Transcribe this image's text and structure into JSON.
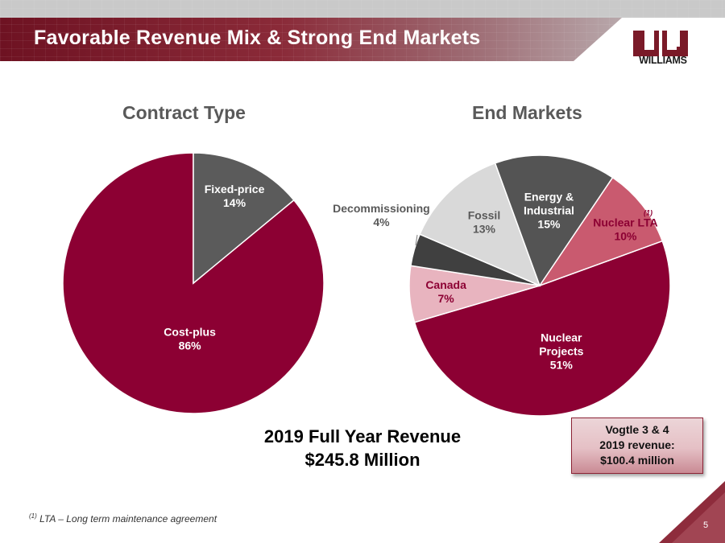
{
  "header": {
    "title": "Favorable Revenue Mix & Strong End Markets",
    "logo_text": "WILLIAMS"
  },
  "colors": {
    "brand_dark_red": "#8c0033",
    "header_red": "#7a1a28",
    "dark_gray": "#5b5b5b",
    "charcoal": "#404040",
    "light_gray": "#d9d9d9",
    "rose": "#c95a6f",
    "pink": "#e8b4bf"
  },
  "chart_data": [
    {
      "type": "pie",
      "title": "Contract Type",
      "slices": [
        {
          "label": "Cost-plus",
          "value": 86,
          "display": "86%",
          "color": "#8c0033",
          "text_color": "#ffffff"
        },
        {
          "label": "Fixed-price",
          "value": 14,
          "display": "14%",
          "color": "#5b5b5b",
          "text_color": "#ffffff"
        }
      ]
    },
    {
      "type": "pie",
      "title": "End Markets",
      "slices": [
        {
          "label": "Nuclear Projects",
          "lines": [
            "Nuclear",
            "Projects"
          ],
          "value": 51,
          "display": "51%",
          "color": "#8c0033",
          "text_color": "#ffffff"
        },
        {
          "label": "Canada",
          "lines": [
            "Canada"
          ],
          "value": 7,
          "display": "7%",
          "color": "#e8b4bf",
          "text_color": "#8c0033"
        },
        {
          "label": "Decommissioning",
          "lines": [
            "Decommissioning"
          ],
          "value": 4,
          "display": "4%",
          "color": "#404040",
          "text_color": "#595959"
        },
        {
          "label": "Fossil",
          "lines": [
            "Fossil"
          ],
          "value": 13,
          "display": "13%",
          "color": "#d9d9d9",
          "text_color": "#595959"
        },
        {
          "label": "Energy & Industrial",
          "lines": [
            "Energy &",
            "Industrial"
          ],
          "value": 15,
          "display": "15%",
          "color": "#545454",
          "text_color": "#ffffff"
        },
        {
          "label": "Nuclear LTA",
          "lines": [
            "Nuclear LTA"
          ],
          "value": 10,
          "display": "10%",
          "color": "#c95a6f",
          "text_color": "#8c0033",
          "footnote_marker": "(1)"
        }
      ]
    }
  ],
  "summary": {
    "line1": "2019 Full Year Revenue",
    "line2": "$245.8 Million"
  },
  "callout": {
    "line1": "Vogtle 3 & 4",
    "line2": "2019 revenue:",
    "line3": "$100.4 million"
  },
  "footnote": {
    "marker": "(1)",
    "text": "LTA – Long term maintenance agreement"
  },
  "page_number": "5"
}
